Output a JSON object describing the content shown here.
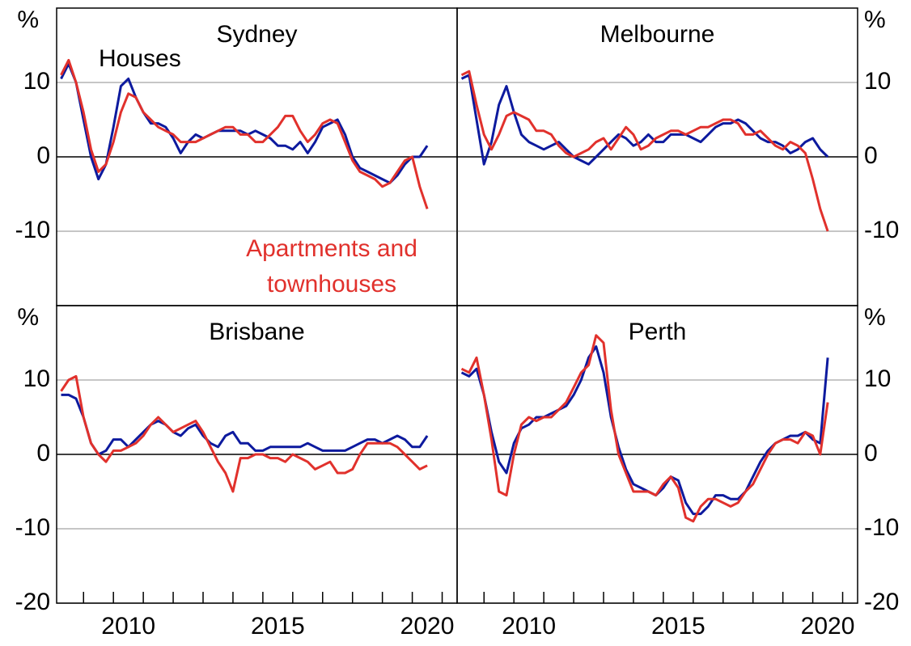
{
  "chart_data": [
    {
      "type": "line",
      "title": "Sydney",
      "y_unit": "%",
      "yaxis_side": "left",
      "grid": true,
      "legend": "in-plot",
      "xlim": [
        2008.1,
        2021.5
      ],
      "ylim": [
        -20,
        20
      ],
      "yticks": [
        -10,
        0,
        10
      ],
      "x": [
        2008.25,
        2008.5,
        2008.75,
        2009,
        2009.25,
        2009.5,
        2009.75,
        2010,
        2010.25,
        2010.5,
        2010.75,
        2011,
        2011.25,
        2011.5,
        2011.75,
        2012,
        2012.25,
        2012.5,
        2012.75,
        2013,
        2013.25,
        2013.5,
        2013.75,
        2014,
        2014.25,
        2014.5,
        2014.75,
        2015,
        2015.25,
        2015.5,
        2015.75,
        2016,
        2016.25,
        2016.5,
        2016.75,
        2017,
        2017.25,
        2017.5,
        2017.75,
        2018,
        2018.25,
        2018.5,
        2018.75,
        2019,
        2019.25,
        2019.5,
        2019.75,
        2020,
        2020.25,
        2020.5
      ],
      "series": [
        {
          "name": "Houses",
          "color": "#0d1a9e",
          "values": [
            10.5,
            12.5,
            10,
            5,
            0,
            -3,
            -1,
            4,
            9.5,
            10.5,
            8,
            6,
            4.5,
            4.5,
            4,
            2.5,
            0.5,
            2,
            3,
            2.5,
            3,
            3.5,
            3.5,
            3.5,
            3.5,
            3,
            3.5,
            3,
            2.5,
            1.5,
            1.5,
            1,
            2,
            0.5,
            2,
            4,
            4.5,
            5,
            3,
            0,
            -1.5,
            -2,
            -2.5,
            -3,
            -3.5,
            -2.5,
            -1,
            0,
            0,
            1.5
          ]
        },
        {
          "name": "Apartments and townhouses",
          "color": "#e1312c",
          "values": [
            11,
            13,
            10,
            6,
            1,
            -2,
            -1,
            2,
            6,
            8.5,
            8,
            6,
            5,
            4,
            3.5,
            3,
            2,
            2,
            2,
            2.5,
            3,
            3.5,
            4,
            4,
            3,
            3,
            2,
            2,
            3,
            4,
            5.5,
            5.5,
            3.5,
            2,
            3,
            4.5,
            5,
            4.5,
            2,
            -0.5,
            -2,
            -2.5,
            -3,
            -4,
            -3.5,
            -2,
            -0.5,
            0,
            -4,
            -7
          ]
        }
      ]
    },
    {
      "type": "line",
      "title": "Melbourne",
      "y_unit": "%",
      "yaxis_side": "right",
      "grid": true,
      "xlim": [
        2008.1,
        2021.5
      ],
      "ylim": [
        -20,
        20
      ],
      "yticks": [
        -10,
        0,
        10
      ],
      "x": [
        2008.25,
        2008.5,
        2008.75,
        2009,
        2009.25,
        2009.5,
        2009.75,
        2010,
        2010.25,
        2010.5,
        2010.75,
        2011,
        2011.25,
        2011.5,
        2011.75,
        2012,
        2012.25,
        2012.5,
        2012.75,
        2013,
        2013.25,
        2013.5,
        2013.75,
        2014,
        2014.25,
        2014.5,
        2014.75,
        2015,
        2015.25,
        2015.5,
        2015.75,
        2016,
        2016.25,
        2016.5,
        2016.75,
        2017,
        2017.25,
        2017.5,
        2017.75,
        2018,
        2018.25,
        2018.5,
        2018.75,
        2019,
        2019.25,
        2019.5,
        2019.75,
        2020,
        2020.25,
        2020.5
      ],
      "series": [
        {
          "name": "Houses",
          "color": "#0d1a9e",
          "values": [
            10.5,
            11,
            5,
            -1,
            2,
            7,
            9.5,
            6,
            3,
            2,
            1.5,
            1,
            1.5,
            2,
            1,
            0,
            -0.5,
            -1,
            0,
            1,
            2,
            3,
            2.5,
            1.5,
            2,
            3,
            2,
            2,
            3,
            3,
            3,
            2.5,
            2,
            3,
            4,
            4.5,
            4.5,
            5,
            4.5,
            3.5,
            2.5,
            2,
            2,
            1.5,
            0.5,
            1,
            2,
            2.5,
            1,
            0
          ]
        },
        {
          "name": "Apartments and townhouses",
          "color": "#e1312c",
          "values": [
            11,
            11.5,
            7,
            3,
            1,
            3,
            5.5,
            6,
            5.5,
            5,
            3.5,
            3.5,
            3,
            1.5,
            0.5,
            0,
            0.5,
            1,
            2,
            2.5,
            1,
            2.5,
            4,
            3,
            1,
            1.5,
            2.5,
            3,
            3.5,
            3.5,
            3,
            3.5,
            4,
            4,
            4.5,
            5,
            5,
            4.5,
            3,
            3,
            3.5,
            2.5,
            1.5,
            1,
            2,
            1.5,
            0.5,
            -3,
            -7,
            -10
          ]
        }
      ]
    },
    {
      "type": "line",
      "title": "Brisbane",
      "y_unit": "%",
      "yaxis_side": "left",
      "grid": true,
      "xlim": [
        2008.1,
        2021.5
      ],
      "ylim": [
        -20,
        20
      ],
      "yticks": [
        -20,
        -10,
        0,
        10
      ],
      "xticks": [
        2009,
        2010,
        2011,
        2012,
        2013,
        2014,
        2015,
        2016,
        2017,
        2018,
        2019,
        2020,
        2021
      ],
      "xlabels": [
        2010,
        2015,
        2020
      ],
      "x": [
        2008.25,
        2008.5,
        2008.75,
        2009,
        2009.25,
        2009.5,
        2009.75,
        2010,
        2010.25,
        2010.5,
        2010.75,
        2011,
        2011.25,
        2011.5,
        2011.75,
        2012,
        2012.25,
        2012.5,
        2012.75,
        2013,
        2013.25,
        2013.5,
        2013.75,
        2014,
        2014.25,
        2014.5,
        2014.75,
        2015,
        2015.25,
        2015.5,
        2015.75,
        2016,
        2016.25,
        2016.5,
        2016.75,
        2017,
        2017.25,
        2017.5,
        2017.75,
        2018,
        2018.25,
        2018.5,
        2018.75,
        2019,
        2019.25,
        2019.5,
        2019.75,
        2020,
        2020.25,
        2020.5
      ],
      "series": [
        {
          "name": "Houses",
          "color": "#0d1a9e",
          "values": [
            8,
            8,
            7.5,
            5,
            1.5,
            0,
            0.5,
            2,
            2,
            1,
            2,
            3,
            4,
            4.5,
            4,
            3,
            2.5,
            3.5,
            4,
            2.5,
            1.5,
            1,
            2.5,
            3,
            1.5,
            1.5,
            0.5,
            0.5,
            1,
            1,
            1,
            1,
            1,
            1.5,
            1,
            0.5,
            0.5,
            0.5,
            0.5,
            1,
            1.5,
            2,
            2,
            1.5,
            2,
            2.5,
            2,
            1,
            1,
            2.5
          ]
        },
        {
          "name": "Apartments and townhouses",
          "color": "#e1312c",
          "values": [
            8.5,
            10,
            10.5,
            5,
            1.5,
            0,
            -1,
            0.5,
            0.5,
            1,
            1.5,
            2.5,
            4,
            5,
            4,
            3,
            3.5,
            4,
            4.5,
            3,
            1,
            -1,
            -2.5,
            -5,
            -0.5,
            -0.5,
            0,
            0,
            -0.5,
            -0.5,
            -1,
            0,
            -0.5,
            -1,
            -2,
            -1.5,
            -1,
            -2.5,
            -2.5,
            -2,
            0,
            1.5,
            1.5,
            1.5,
            1.5,
            1,
            0,
            -1,
            -2,
            -1.5
          ]
        }
      ]
    },
    {
      "type": "line",
      "title": "Perth",
      "y_unit": "%",
      "yaxis_side": "right",
      "grid": true,
      "xlim": [
        2008.1,
        2021.5
      ],
      "ylim": [
        -20,
        20
      ],
      "yticks": [
        -20,
        -10,
        0,
        10
      ],
      "xticks": [
        2009,
        2010,
        2011,
        2012,
        2013,
        2014,
        2015,
        2016,
        2017,
        2018,
        2019,
        2020,
        2021
      ],
      "xlabels": [
        2010,
        2015,
        2020
      ],
      "x": [
        2008.25,
        2008.5,
        2008.75,
        2009,
        2009.25,
        2009.5,
        2009.75,
        2010,
        2010.25,
        2010.5,
        2010.75,
        2011,
        2011.25,
        2011.5,
        2011.75,
        2012,
        2012.25,
        2012.5,
        2012.75,
        2013,
        2013.25,
        2013.5,
        2013.75,
        2014,
        2014.25,
        2014.5,
        2014.75,
        2015,
        2015.25,
        2015.5,
        2015.75,
        2016,
        2016.25,
        2016.5,
        2016.75,
        2017,
        2017.25,
        2017.5,
        2017.75,
        2018,
        2018.25,
        2018.5,
        2018.75,
        2019,
        2019.25,
        2019.5,
        2019.75,
        2020,
        2020.25,
        2020.5
      ],
      "series": [
        {
          "name": "Houses",
          "color": "#0d1a9e",
          "values": [
            11,
            10.5,
            11.5,
            8,
            3,
            -1,
            -2.5,
            1.5,
            3.5,
            4,
            5,
            5,
            5.5,
            6,
            6.5,
            8,
            10,
            13,
            14.5,
            11,
            5,
            1,
            -2,
            -4,
            -4.5,
            -5,
            -5.5,
            -4.5,
            -3,
            -3.5,
            -6.5,
            -8,
            -8,
            -7,
            -5.5,
            -5.5,
            -6,
            -6,
            -5,
            -3,
            -1,
            0.5,
            1.5,
            2,
            2.5,
            2.5,
            3,
            2,
            1.5,
            13
          ]
        },
        {
          "name": "Apartments and townhouses",
          "color": "#e1312c",
          "values": [
            11.5,
            11,
            13,
            8,
            2,
            -5,
            -5.5,
            0,
            4,
            5,
            4.5,
            5,
            5,
            6,
            7,
            9,
            11,
            12,
            16,
            15,
            6,
            0,
            -2.5,
            -5,
            -5,
            -5,
            -5.5,
            -4,
            -3,
            -4.5,
            -8.5,
            -9,
            -7,
            -6,
            -6,
            -6.5,
            -7,
            -6.5,
            -5,
            -4,
            -2,
            0,
            1.5,
            2,
            2,
            1.5,
            3,
            2.5,
            0,
            7
          ]
        }
      ]
    }
  ]
}
